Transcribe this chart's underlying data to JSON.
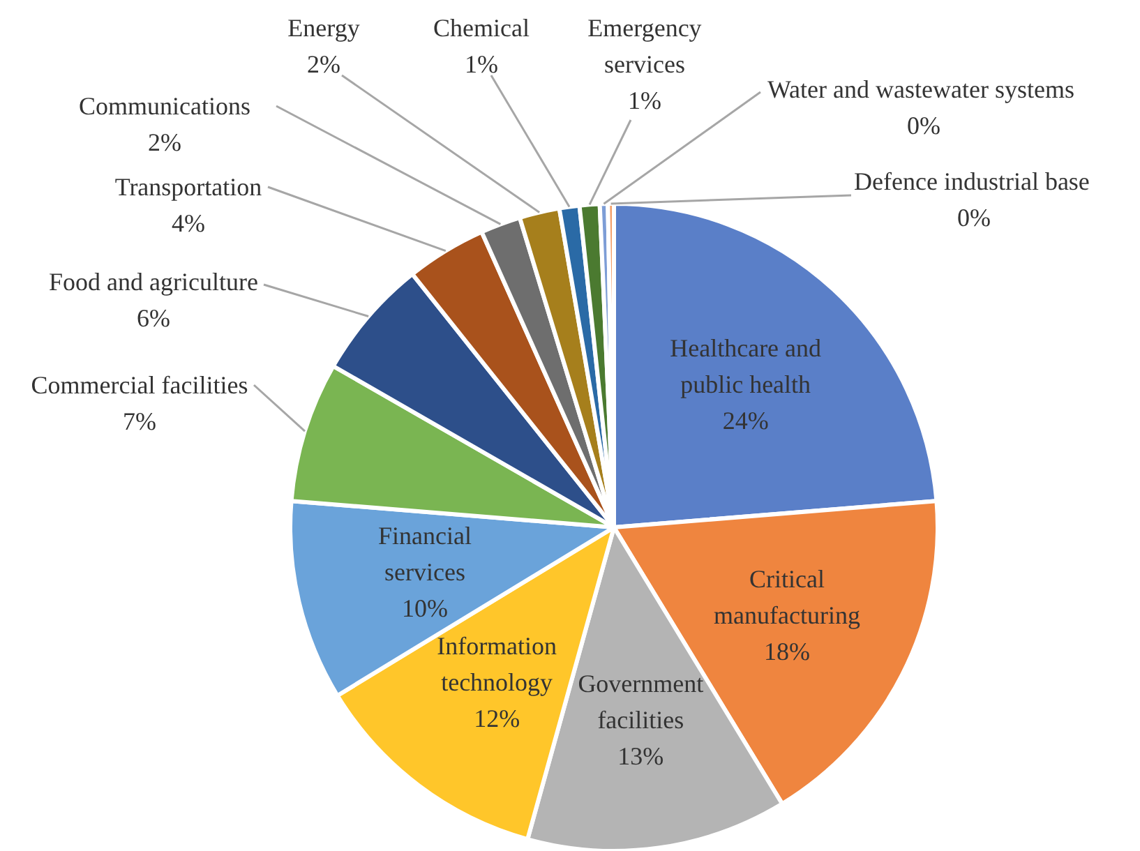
{
  "chart_data": {
    "type": "pie",
    "categories": [
      "Healthcare and public health",
      "Critical manufacturing",
      "Government facilities",
      "Information technology",
      "Financial services",
      "Commercial facilities",
      "Food and agriculture",
      "Transportation",
      "Communications",
      "Energy",
      "Chemical",
      "Emergency services",
      "Water and wastewater systems",
      "Defence industrial base"
    ],
    "values": [
      23.7,
      17.6,
      13,
      12,
      10,
      7,
      6,
      4,
      2,
      2,
      1,
      1,
      0.4,
      0.3
    ],
    "value_labels": [
      "24%",
      "18%",
      "13%",
      "12%",
      "10%",
      "7%",
      "6%",
      "4%",
      "2%",
      "2%",
      "1%",
      "1%",
      "0%",
      "0%"
    ],
    "colors": [
      "#5a7fc8",
      "#ef853f",
      "#b4b4b4",
      "#ffc62a",
      "#6aa3da",
      "#7ab552",
      "#2d4f8a",
      "#a9521c",
      "#6e6e6e",
      "#a67f1c",
      "#2a6aa6",
      "#4b7a30",
      "#7d9dd6",
      "#f4a06a"
    ]
  }
}
